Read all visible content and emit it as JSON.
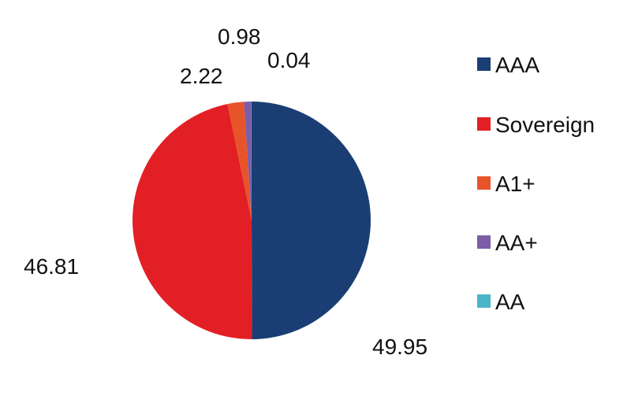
{
  "chart_data": {
    "type": "pie",
    "categories": [
      "AAA",
      "Sovereign",
      "A1+",
      "AA+",
      "AA"
    ],
    "values": [
      49.95,
      46.81,
      2.22,
      0.98,
      0.04
    ],
    "value_labels": [
      "49.95",
      "46.81",
      "2.22",
      "0.98",
      "0.04"
    ],
    "colors": [
      "#1a3e74",
      "#e31f26",
      "#e8542a",
      "#7b5ea7",
      "#4bb4c8"
    ],
    "legend_position": "right",
    "title": "",
    "start_angle": "top, clockwise"
  }
}
